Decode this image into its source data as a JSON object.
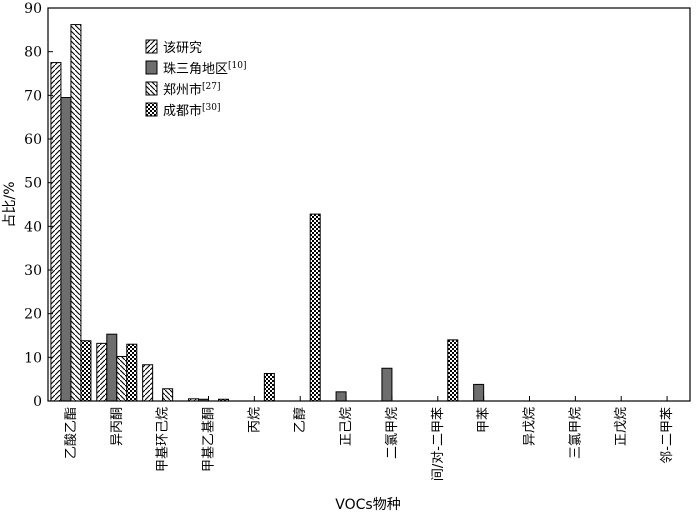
{
  "chart_data": {
    "type": "bar",
    "xlabel": "VOCs物种",
    "ylabel": "占比/%",
    "ylim": [
      0,
      90
    ],
    "yticks": [
      0,
      10,
      20,
      30,
      40,
      50,
      60,
      70,
      80,
      90
    ],
    "grid": false,
    "legend_position": "top-left",
    "categories": [
      "乙酸乙酯",
      "异丙酮",
      "甲基环己烷",
      "甲基乙基酮",
      "丙烷",
      "乙醇",
      "正己烷",
      "二氯甲烷",
      "间/对-二甲苯",
      "甲苯",
      "异戊烷",
      "三氯甲烷",
      "正戊烷",
      "邻-二甲苯"
    ],
    "series": [
      {
        "name": "该研究",
        "ref": "",
        "pattern": "hatch-right",
        "values": [
          77.5,
          13.2,
          8.3,
          0.5,
          0,
          0,
          0,
          0,
          0,
          0,
          0,
          0,
          0,
          0
        ]
      },
      {
        "name": "珠三角地区",
        "ref": "[10]",
        "pattern": "solid-gray",
        "values": [
          69.5,
          15.3,
          0,
          0.4,
          0,
          0,
          2.1,
          7.5,
          0,
          3.8,
          0,
          0,
          0,
          0
        ]
      },
      {
        "name": "郑州市",
        "ref": "[27]",
        "pattern": "hatch-left",
        "values": [
          86.2,
          10.2,
          2.8,
          0,
          0,
          0,
          0,
          0,
          0,
          0,
          0,
          0,
          0,
          0
        ]
      },
      {
        "name": "成都市",
        "ref": "[30]",
        "pattern": "checker",
        "values": [
          13.8,
          13.0,
          0,
          0.4,
          6.3,
          42.8,
          0,
          0,
          14.0,
          0,
          0,
          0,
          0,
          0
        ]
      }
    ]
  }
}
